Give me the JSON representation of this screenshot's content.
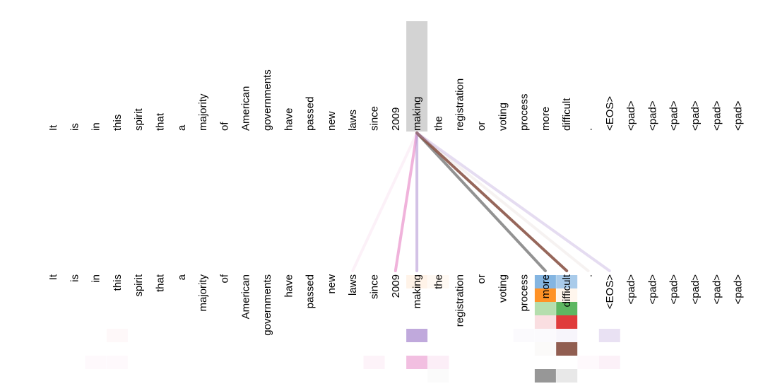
{
  "tokens": [
    "It",
    "is",
    "in",
    "this",
    "spirit",
    "that",
    "a",
    "majority",
    "of",
    "American",
    "governments",
    "have",
    "passed",
    "new",
    "laws",
    "since",
    "2009",
    "making",
    "the",
    "registration",
    "or",
    "voting",
    "process",
    "more",
    "difficult",
    ".",
    "<EOS>",
    "<pad>",
    "<pad>",
    "<pad>",
    "<pad>",
    "<pad>",
    "<pad>"
  ],
  "selected_token_index": 17,
  "head_colors": [
    "#6fa8dc",
    "#ff8c1a",
    "#a8d8a0",
    "#4caf50",
    "#f8d0d4",
    "#e03b3b",
    "#b59ad6",
    "#8b5548",
    "#e88ac8",
    "#8c8c8c"
  ],
  "attention": [
    {
      "target": 14,
      "head": 8,
      "weight": 0.12
    },
    {
      "target": 16,
      "head": 8,
      "weight": 0.65
    },
    {
      "target": 17,
      "head": 6,
      "weight": 0.6
    },
    {
      "target": 23,
      "head": 9,
      "weight": 0.95
    },
    {
      "target": 24,
      "head": 7,
      "weight": 0.9
    },
    {
      "target": 25,
      "head": 7,
      "weight": 0.08
    },
    {
      "target": 26,
      "head": 6,
      "weight": 0.35
    }
  ],
  "cells": [
    {
      "col": 17,
      "row": 0,
      "head": 1,
      "weight": 0.1
    },
    {
      "col": 18,
      "row": 0,
      "head": 1,
      "weight": 0.05
    },
    {
      "col": 23,
      "row": 0,
      "head": 0,
      "weight": 0.85
    },
    {
      "col": 24,
      "row": 0,
      "head": 0,
      "weight": 0.6
    },
    {
      "col": 23,
      "row": 1,
      "head": 1,
      "weight": 0.95
    },
    {
      "col": 24,
      "row": 1,
      "head": 1,
      "weight": 0.08
    },
    {
      "col": 23,
      "row": 2,
      "head": 2,
      "weight": 0.85
    },
    {
      "col": 24,
      "row": 2,
      "head": 3,
      "weight": 0.9
    },
    {
      "col": 23,
      "row": 3,
      "head": 4,
      "weight": 0.7
    },
    {
      "col": 24,
      "row": 3,
      "head": 5,
      "weight": 1.0
    },
    {
      "col": 3,
      "row": 4,
      "head": 4,
      "weight": 0.15
    },
    {
      "col": 17,
      "row": 4,
      "head": 6,
      "weight": 0.85
    },
    {
      "col": 22,
      "row": 4,
      "head": 6,
      "weight": 0.05
    },
    {
      "col": 23,
      "row": 4,
      "head": 6,
      "weight": 0.05
    },
    {
      "col": 24,
      "row": 4,
      "head": 6,
      "weight": 0.1
    },
    {
      "col": 26,
      "row": 4,
      "head": 6,
      "weight": 0.3
    },
    {
      "col": 23,
      "row": 5,
      "head": 7,
      "weight": 0.03
    },
    {
      "col": 24,
      "row": 5,
      "head": 7,
      "weight": 0.95
    },
    {
      "col": 2,
      "row": 6,
      "head": 8,
      "weight": 0.05
    },
    {
      "col": 3,
      "row": 6,
      "head": 8,
      "weight": 0.05
    },
    {
      "col": 15,
      "row": 6,
      "head": 8,
      "weight": 0.1
    },
    {
      "col": 17,
      "row": 6,
      "head": 8,
      "weight": 0.55
    },
    {
      "col": 18,
      "row": 6,
      "head": 8,
      "weight": 0.15
    },
    {
      "col": 25,
      "row": 6,
      "head": 8,
      "weight": 0.05
    },
    {
      "col": 26,
      "row": 6,
      "head": 8,
      "weight": 0.12
    },
    {
      "col": 18,
      "row": 7,
      "head": 9,
      "weight": 0.03
    },
    {
      "col": 23,
      "row": 7,
      "head": 9,
      "weight": 0.9
    },
    {
      "col": 24,
      "row": 7,
      "head": 9,
      "weight": 0.2
    }
  ]
}
